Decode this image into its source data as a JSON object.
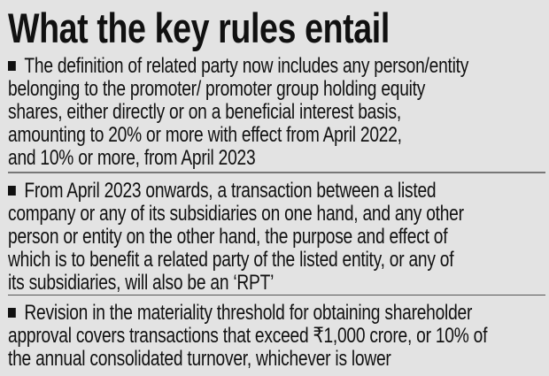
{
  "title": "What the key rules entail",
  "bullet_icon": "square-bullet",
  "items": [
    {
      "lines": [
        "The definition of related party now includes any person/entity",
        "belonging to the promoter/ promoter group holding equity",
        "shares, either directly or on a beneficial interest basis,",
        "amounting to 20% or more with effect from April 2022,",
        "and 10% or more, from April 2023"
      ]
    },
    {
      "lines": [
        "From April 2023 onwards, a transaction between a listed",
        "company or any of its subsidiaries on one hand, and any other",
        "person or entity on the other hand, the purpose and effect of",
        "which is to benefit a related party of the listed entity, or any of",
        "its subsidiaries, will also be an ‘RPT’"
      ]
    },
    {
      "lines": [
        "Revision in the materiality threshold for obtaining shareholder",
        "approval covers transactions that exceed ₹1,000 crore, or 10% of",
        "the annual consolidated turnover, whichever is lower"
      ]
    }
  ]
}
